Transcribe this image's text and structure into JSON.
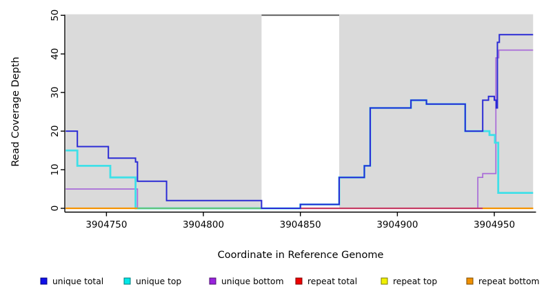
{
  "figure": {
    "kind": "read-coverage-step-plot",
    "background_color": "#ffffff",
    "band_color": "#dadada",
    "gap_color": "#ffffff"
  },
  "chart_data": {
    "type": "line",
    "subtype": "step",
    "title": "",
    "xlabel": "Coordinate in Reference Genome",
    "ylabel": "Read Coverage Depth",
    "xlim": [
      3904729,
      3904970
    ],
    "ylim": [
      0,
      50
    ],
    "grid": false,
    "x_ticks": [
      3904750,
      3904800,
      3904850,
      3904900,
      3904950
    ],
    "x_tick_labels": [
      "3904750",
      "3904800",
      "3904850",
      "3904900",
      "3904950"
    ],
    "y_ticks": [
      0,
      10,
      20,
      30,
      40,
      50
    ],
    "y_tick_labels": [
      "0",
      "10",
      "20",
      "30",
      "40",
      "50"
    ],
    "shaded_regions": [
      {
        "x0": 3904729,
        "x1": 3904830,
        "color": "#dadada"
      },
      {
        "x0": 3904870,
        "x1": 3904970,
        "color": "#dadada"
      }
    ],
    "gap_region": {
      "x0": 3904830,
      "x1": 3904870,
      "top_line_value": 50,
      "top_line_color": "#6e6e6e"
    },
    "series": [
      {
        "name": "repeat top",
        "color": "#f0f000",
        "width": 1.6,
        "points": [
          [
            3904729,
            0
          ]
        ]
      },
      {
        "name": "repeat total",
        "color": "#d02020",
        "width": 1.6,
        "points": [
          [
            3904729,
            0
          ]
        ]
      },
      {
        "name": "repeat bottom",
        "color": "#f59300",
        "width": 1.8,
        "points": [
          [
            3904729,
            0
          ]
        ]
      },
      {
        "name": "unique bottom",
        "color": "#a86ad8",
        "width": 1.7,
        "points": [
          [
            3904729,
            5
          ],
          [
            3904766,
            0
          ],
          [
            3904941.5,
            8
          ],
          [
            3904944,
            9
          ],
          [
            3904950.8,
            39
          ],
          [
            3904952.3,
            41
          ]
        ]
      },
      {
        "name": "unique top",
        "color": "#3fe0e8",
        "width": 2.8,
        "points": [
          [
            3904729,
            15
          ],
          [
            3904735,
            11
          ],
          [
            3904752,
            8
          ],
          [
            3904765,
            0
          ],
          [
            3904850,
            1
          ],
          [
            3904870,
            8
          ],
          [
            3904883,
            11
          ],
          [
            3904886,
            26
          ],
          [
            3904907,
            28
          ],
          [
            3904915,
            27
          ],
          [
            3904935,
            20
          ],
          [
            3904947.5,
            19
          ],
          [
            3904950.3,
            17
          ],
          [
            3904952,
            4
          ]
        ]
      },
      {
        "name": "unique total",
        "color": "#2b2bd5",
        "width": 2,
        "points": [
          [
            3904729,
            20
          ],
          [
            3904735,
            16
          ],
          [
            3904751,
            13
          ],
          [
            3904765,
            12
          ],
          [
            3904766,
            7
          ],
          [
            3904781,
            2
          ],
          [
            3904830,
            0
          ],
          [
            3904850,
            1
          ],
          [
            3904870,
            8
          ],
          [
            3904883,
            11
          ],
          [
            3904886,
            26
          ],
          [
            3904907,
            28
          ],
          [
            3904915,
            27
          ],
          [
            3904935,
            20
          ],
          [
            3904944,
            28
          ],
          [
            3904947,
            29
          ],
          [
            3904950,
            28
          ],
          [
            3904951,
            26
          ],
          [
            3904951.6,
            43
          ],
          [
            3904952.6,
            45
          ]
        ]
      }
    ],
    "baseline_visible_segments": [
      {
        "x0": 3904729,
        "x1": 3904766,
        "value": 0,
        "color": "#f59300"
      },
      {
        "x0": 3904766,
        "x1": 3904830,
        "value": 0,
        "color": "#62c47c"
      },
      {
        "x0": 3904850,
        "x1": 3904944,
        "value": 0,
        "color": "#c53b63"
      },
      {
        "x0": 3904944,
        "x1": 3904970,
        "value": 0,
        "color": "#f59300"
      }
    ],
    "legend": {
      "position": "bottom",
      "items": [
        {
          "label": "unique total",
          "color": "#1010e8",
          "border": "#000080"
        },
        {
          "label": "unique top",
          "color": "#00e8e8",
          "border": "#007878"
        },
        {
          "label": "unique bottom",
          "color": "#9922dd",
          "border": "#4b0d6e"
        },
        {
          "label": "repeat total",
          "color": "#ee0000",
          "border": "#7a0000"
        },
        {
          "label": "repeat top",
          "color": "#f0f000",
          "border": "#7a7a00"
        },
        {
          "label": "repeat bottom",
          "color": "#f09000",
          "border": "#7a4a00"
        }
      ]
    }
  }
}
